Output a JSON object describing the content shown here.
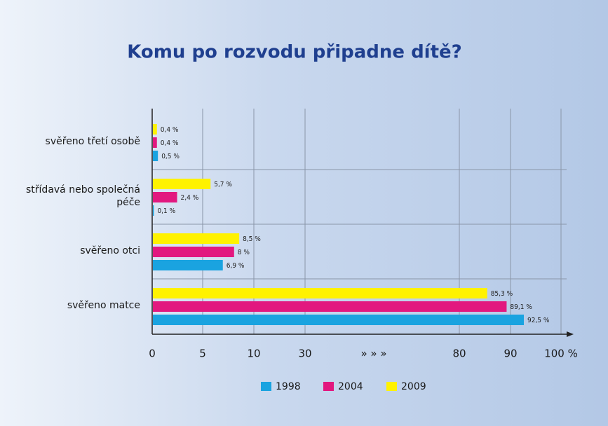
{
  "chart_data": {
    "type": "bar",
    "orientation": "horizontal",
    "title": "Komu po rozvodu připadne dítě?",
    "categories": [
      "svěřeno třetí osobě",
      "střídavá nebo společná péče",
      "svěřeno otci",
      "svěřeno matce"
    ],
    "series": [
      {
        "name": "1998",
        "color": "#1aa3e0",
        "values": [
          0.5,
          0.1,
          6.9,
          92.5
        ],
        "value_labels": [
          "0,5 %",
          "0,1 %",
          "6,9 %",
          "92,5 %"
        ]
      },
      {
        "name": "2004",
        "color": "#e2187f",
        "values": [
          0.4,
          2.4,
          8,
          89.1
        ],
        "value_labels": [
          "0,4 %",
          "2,4 %",
          "8 %",
          "89,1 %"
        ]
      },
      {
        "name": "2009",
        "color": "#fff200",
        "values": [
          0.4,
          5.7,
          8.5,
          85.3
        ],
        "value_labels": [
          "0,4 %",
          "5,7 %",
          "8,5 %",
          "85,3 %"
        ]
      }
    ],
    "xlim": [
      0,
      100
    ],
    "xticks": [
      0,
      5,
      10,
      30,
      80,
      90,
      {
        "value": 100,
        "label": "100 %"
      }
    ],
    "x_axis_break": "» » »",
    "grid": true
  }
}
